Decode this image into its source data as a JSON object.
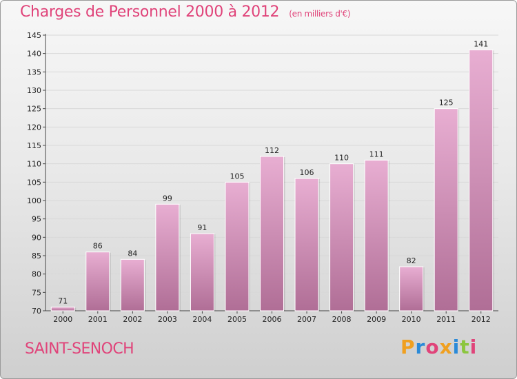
{
  "header": {
    "title": "Charges de Personnel 2000 à 2012",
    "subtitle": "(en milliers d'€)"
  },
  "footer": {
    "town": "SAINT-SENOCH",
    "brand_letters": [
      "P",
      "r",
      "o",
      "x",
      "i",
      "t",
      "i"
    ],
    "brand_colors": [
      "#f0a020",
      "#2a8ad8",
      "#e0447a",
      "#f0a020",
      "#2a8ad8",
      "#8cc63f",
      "#e0447a"
    ]
  },
  "colors": {
    "bar_light": "#e8aed2",
    "bar_dark": "#b06e96",
    "title": "#e0447a",
    "grid": "#d8d8d8"
  },
  "chart_data": {
    "type": "bar",
    "title": "Charges de Personnel 2000 à 2012",
    "subtitle": "(en milliers d'€)",
    "categories": [
      "2000",
      "2001",
      "2002",
      "2003",
      "2004",
      "2005",
      "2006",
      "2007",
      "2008",
      "2009",
      "2010",
      "2011",
      "2012"
    ],
    "values": [
      71,
      86,
      84,
      99,
      91,
      105,
      112,
      106,
      110,
      111,
      82,
      125,
      141
    ],
    "ylim": [
      70,
      145
    ],
    "yticks": [
      70,
      75,
      80,
      85,
      90,
      95,
      100,
      105,
      110,
      115,
      120,
      125,
      130,
      135,
      140,
      145
    ],
    "grid": true
  }
}
